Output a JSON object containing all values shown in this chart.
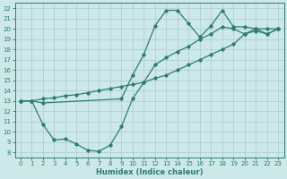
{
  "xlabel": "Humidex (Indice chaleur)",
  "bg_color": "#cce8e8",
  "grid_color": "#aacccc",
  "line_color": "#2e7d6e",
  "xlim": [
    -0.5,
    23.5
  ],
  "ylim": [
    7.5,
    22.5
  ],
  "xticks": [
    0,
    1,
    2,
    3,
    4,
    5,
    6,
    7,
    8,
    9,
    10,
    11,
    12,
    13,
    14,
    15,
    16,
    17,
    18,
    19,
    20,
    21,
    22,
    23
  ],
  "yticks": [
    8,
    9,
    10,
    11,
    12,
    13,
    14,
    15,
    16,
    17,
    18,
    19,
    20,
    21,
    22
  ],
  "line_straight_x": [
    0,
    1,
    2,
    3,
    4,
    5,
    6,
    7,
    8,
    9,
    10,
    11,
    12,
    13,
    14,
    15,
    16,
    17,
    18,
    19,
    20,
    21,
    22,
    23
  ],
  "line_straight_y": [
    13.0,
    13.0,
    13.2,
    13.3,
    13.5,
    13.6,
    13.8,
    14.0,
    14.2,
    14.4,
    14.6,
    14.8,
    15.2,
    15.5,
    16.0,
    16.5,
    17.0,
    17.5,
    18.0,
    18.5,
    19.5,
    20.0,
    20.0,
    20.0
  ],
  "line_upper_x": [
    0,
    1,
    2,
    9,
    10,
    11,
    12,
    13,
    14,
    15,
    16,
    17,
    18,
    19,
    20,
    21,
    22,
    23
  ],
  "line_upper_y": [
    13.0,
    13.0,
    12.8,
    13.2,
    15.5,
    17.5,
    20.3,
    21.8,
    21.8,
    20.5,
    19.2,
    20.3,
    21.8,
    20.2,
    20.2,
    20.0,
    19.5,
    20.0
  ],
  "line_lower_x": [
    0,
    1,
    2,
    3,
    4,
    5,
    6,
    7,
    8,
    9,
    10,
    11,
    12,
    13,
    14,
    15,
    16,
    17,
    18,
    19,
    20,
    21,
    22,
    23
  ],
  "line_lower_y": [
    13.0,
    13.0,
    10.7,
    9.2,
    9.3,
    8.8,
    8.2,
    8.1,
    8.7,
    10.5,
    13.2,
    14.8,
    16.5,
    17.2,
    17.8,
    18.3,
    19.0,
    19.5,
    20.2,
    20.0,
    19.5,
    19.8,
    19.5,
    20.0
  ]
}
